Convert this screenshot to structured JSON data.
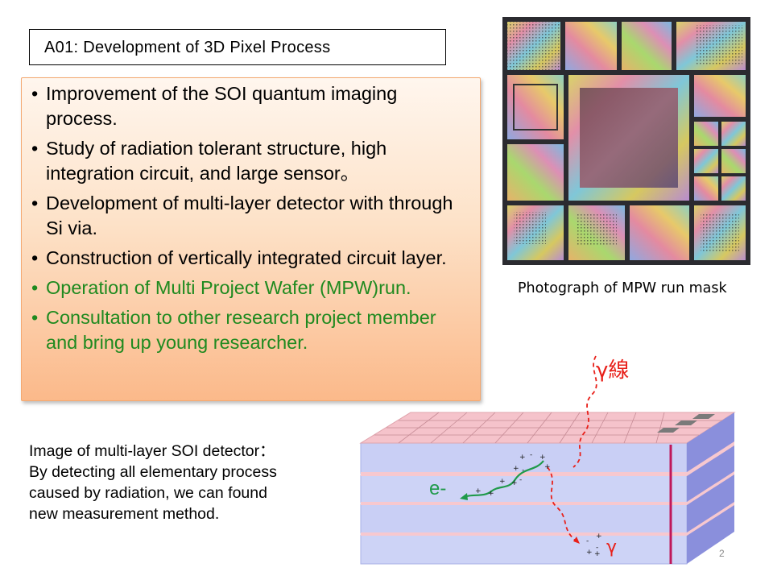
{
  "title": "A01: Development of 3D Pixel Process",
  "bullets": [
    {
      "text": "Improvement of the SOI quantum imaging process.",
      "color": "#000000"
    },
    {
      "text": "Study of radiation tolerant structure, high integration circuit, and large sensor。",
      "color": "#000000"
    },
    {
      "text": "Development of multi-layer detector with through Si via.",
      "color": "#000000"
    },
    {
      "text": "Construction of vertically integrated circuit layer.",
      "color": "#000000"
    },
    {
      "text": "Operation of Multi Project Wafer (MPW)run.",
      "color": "#1f8a1f"
    },
    {
      "text": "Consultation to other research project member and bring up young researcher.",
      "color": "#1f8a1f"
    }
  ],
  "photo_caption": "Photograph of MPW run mask",
  "image_description": [
    "Image of multi-layer SOI detector：",
    "By detecting all elementary process",
    "caused by radiation, we can found",
    "new measurement method."
  ],
  "diagram": {
    "gamma_in_label": "γ線",
    "electron_label": "e-",
    "gamma_out_label": "γ",
    "colors": {
      "gamma": "#e8201a",
      "electron": "#1f9a4a",
      "layer": "#c9cff5",
      "side": "#8a8fdc",
      "top": "#f7c8cf"
    }
  },
  "page_number": "2"
}
